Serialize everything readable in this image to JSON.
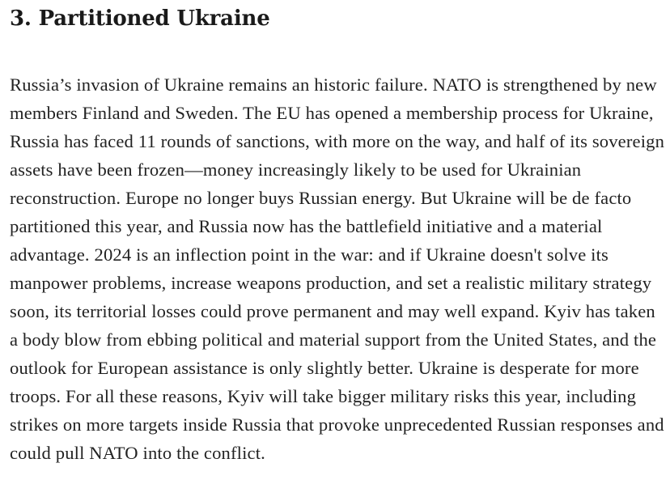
{
  "article": {
    "heading": "3. Partitioned Ukraine",
    "body": "Russia’s invasion of Ukraine remains an historic failure. NATO is strengthened by new members Finland and Sweden. The EU has opened a membership process for Ukraine, Russia has faced 11 rounds of sanctions, with more on the way, and half of its sovereign assets have been frozen—money increasingly likely to be used for Ukrainian reconstruction. Europe no longer buys Russian energy. But Ukraine will be de facto partitioned this year, and Russia now has the battlefield initiative and a material advantage. 2024 is an inflection point in the war: and if Ukraine doesn't solve its manpower problems, increase weapons production, and set a realistic military strategy soon, its territorial losses could prove permanent and may well expand. Kyiv has taken a body blow from ebbing political and material support from the United States, and the outlook for European assistance is only slightly better. Ukraine is desperate for more troops. For all these reasons, Kyiv will take bigger military risks this year, including strikes on more targets inside Russia that provoke unprecedented Russian responses and could pull NATO into the conflict."
  }
}
